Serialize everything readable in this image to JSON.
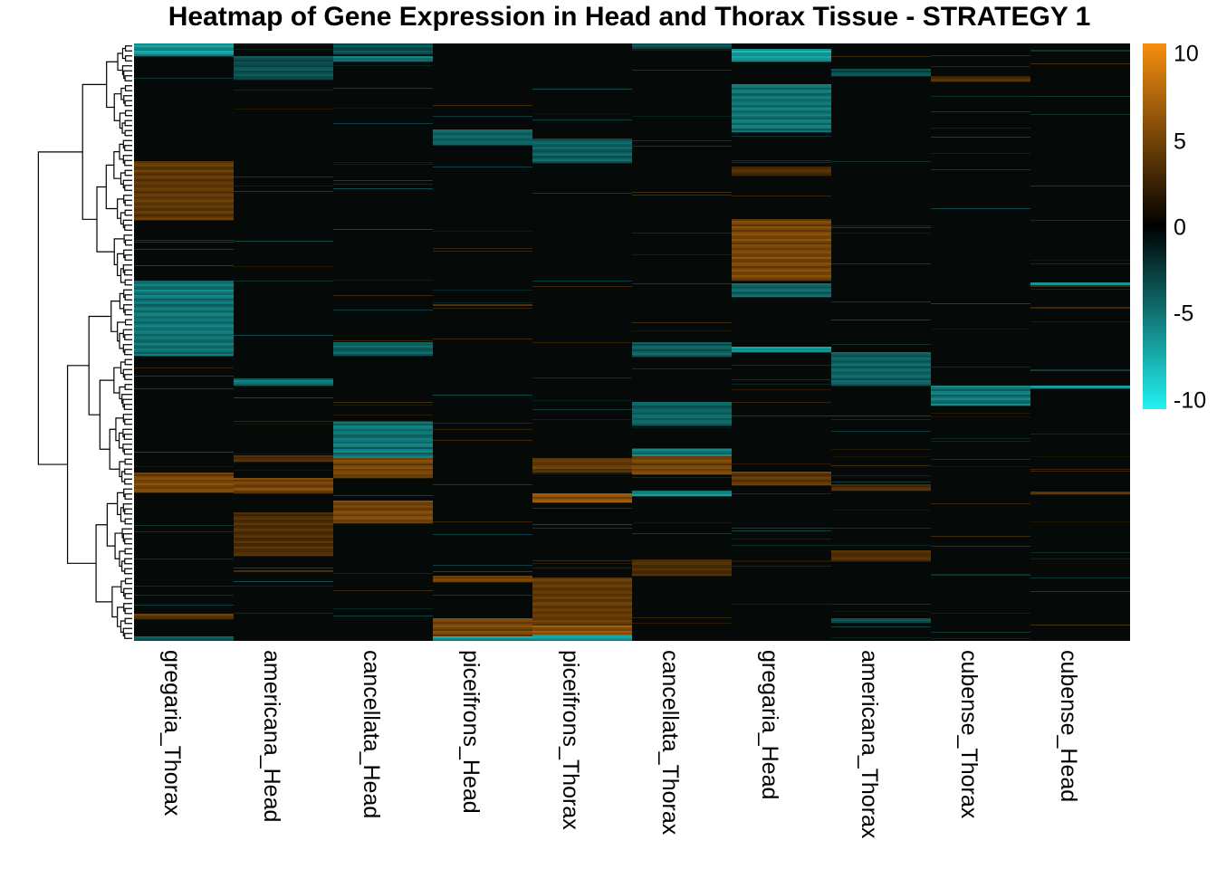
{
  "chart_data": {
    "type": "heatmap",
    "title": "Heatmap of Gene Expression in Head and Thorax Tissue - STRATEGY 1",
    "columns": [
      "gregaria_Thorax",
      "americana_Head",
      "cancellata_Head",
      "piceifrons_Head",
      "piceifrons_Thorax",
      "cancellata_Thorax",
      "gregaria_Head",
      "americana_Thorax",
      "cubense_Thorax",
      "cubense_Head"
    ],
    "color_scale": {
      "min": -10,
      "max": 10,
      "low_color": "#22f2f2",
      "mid_color": "#000000",
      "high_color": "#f58f10",
      "ticks": [
        "10",
        "5",
        "0",
        "-5",
        "-10"
      ]
    },
    "row_count": 660,
    "blocks": [
      {
        "column": "gregaria_Thorax",
        "rows": [
          0,
          14
        ],
        "value": -8
      },
      {
        "column": "gregaria_Thorax",
        "rows": [
          130,
          195
        ],
        "value": 5
      },
      {
        "column": "gregaria_Thorax",
        "rows": [
          262,
          345
        ],
        "value": -6
      },
      {
        "column": "gregaria_Thorax",
        "rows": [
          474,
          496
        ],
        "value": 6
      },
      {
        "column": "gregaria_Thorax",
        "rows": [
          630,
          636
        ],
        "value": 5
      },
      {
        "column": "gregaria_Thorax",
        "rows": [
          655,
          660
        ],
        "value": -5
      },
      {
        "column": "americana_Head",
        "rows": [
          14,
          40
        ],
        "value": -4
      },
      {
        "column": "americana_Head",
        "rows": [
          370,
          378
        ],
        "value": -6
      },
      {
        "column": "americana_Head",
        "rows": [
          455,
          462
        ],
        "value": 4
      },
      {
        "column": "americana_Head",
        "rows": [
          480,
          497
        ],
        "value": 6
      },
      {
        "column": "americana_Head",
        "rows": [
          518,
          566
        ],
        "value": 4
      },
      {
        "column": "cancellata_Head",
        "rows": [
          0,
          12
        ],
        "value": -4
      },
      {
        "column": "cancellata_Head",
        "rows": [
          14,
          20
        ],
        "value": -6
      },
      {
        "column": "cancellata_Head",
        "rows": [
          330,
          345
        ],
        "value": -5
      },
      {
        "column": "cancellata_Head",
        "rows": [
          418,
          458
        ],
        "value": -6
      },
      {
        "column": "cancellata_Head",
        "rows": [
          458,
          480
        ],
        "value": 6
      },
      {
        "column": "cancellata_Head",
        "rows": [
          505,
          530
        ],
        "value": 6
      },
      {
        "column": "piceifrons_Head",
        "rows": [
          95,
          112
        ],
        "value": -5
      },
      {
        "column": "piceifrons_Head",
        "rows": [
          588,
          595
        ],
        "value": 6
      },
      {
        "column": "piceifrons_Head",
        "rows": [
          635,
          655
        ],
        "value": 6
      },
      {
        "column": "piceifrons_Head",
        "rows": [
          655,
          660
        ],
        "value": -8
      },
      {
        "column": "piceifrons_Thorax",
        "rows": [
          105,
          132
        ],
        "value": -5
      },
      {
        "column": "piceifrons_Thorax",
        "rows": [
          458,
          474
        ],
        "value": 5
      },
      {
        "column": "piceifrons_Thorax",
        "rows": [
          497,
          507
        ],
        "value": 7
      },
      {
        "column": "piceifrons_Thorax",
        "rows": [
          590,
          643
        ],
        "value": 5
      },
      {
        "column": "piceifrons_Thorax",
        "rows": [
          643,
          653
        ],
        "value": 7
      },
      {
        "column": "piceifrons_Thorax",
        "rows": [
          653,
          660
        ],
        "value": -8
      },
      {
        "column": "cancellata_Thorax",
        "rows": [
          0,
          6
        ],
        "value": -4
      },
      {
        "column": "cancellata_Thorax",
        "rows": [
          330,
          346
        ],
        "value": -5
      },
      {
        "column": "cancellata_Thorax",
        "rows": [
          396,
          422
        ],
        "value": -5
      },
      {
        "column": "cancellata_Thorax",
        "rows": [
          448,
          456
        ],
        "value": -6
      },
      {
        "column": "cancellata_Thorax",
        "rows": [
          456,
          476
        ],
        "value": 6
      },
      {
        "column": "cancellata_Thorax",
        "rows": [
          494,
          500
        ],
        "value": -7
      },
      {
        "column": "cancellata_Thorax",
        "rows": [
          570,
          588
        ],
        "value": 4
      },
      {
        "column": "gregaria_Head",
        "rows": [
          6,
          20
        ],
        "value": -8
      },
      {
        "column": "gregaria_Head",
        "rows": [
          45,
          98
        ],
        "value": -6
      },
      {
        "column": "gregaria_Head",
        "rows": [
          136,
          146
        ],
        "value": 4
      },
      {
        "column": "gregaria_Head",
        "rows": [
          194,
          262
        ],
        "value": 6
      },
      {
        "column": "gregaria_Head",
        "rows": [
          265,
          280
        ],
        "value": -5
      },
      {
        "column": "gregaria_Head",
        "rows": [
          335,
          341
        ],
        "value": -8
      },
      {
        "column": "gregaria_Head",
        "rows": [
          473,
          488
        ],
        "value": 5
      },
      {
        "column": "americana_Thorax",
        "rows": [
          28,
          36
        ],
        "value": -4
      },
      {
        "column": "americana_Thorax",
        "rows": [
          341,
          378
        ],
        "value": -5
      },
      {
        "column": "americana_Thorax",
        "rows": [
          487,
          494
        ],
        "value": 4
      },
      {
        "column": "americana_Thorax",
        "rows": [
          560,
          572
        ],
        "value": 4
      },
      {
        "column": "americana_Thorax",
        "rows": [
          635,
          640
        ],
        "value": -4
      },
      {
        "column": "cubense_Thorax",
        "rows": [
          36,
          42
        ],
        "value": 4
      },
      {
        "column": "cubense_Thorax",
        "rows": [
          378,
          400
        ],
        "value": -6
      },
      {
        "column": "cubense_Head",
        "rows": [
          264,
          267
        ],
        "value": -7
      },
      {
        "column": "cubense_Head",
        "rows": [
          378,
          381
        ],
        "value": -7
      },
      {
        "column": "cubense_Head",
        "rows": [
          495,
          498
        ],
        "value": 5
      }
    ]
  }
}
